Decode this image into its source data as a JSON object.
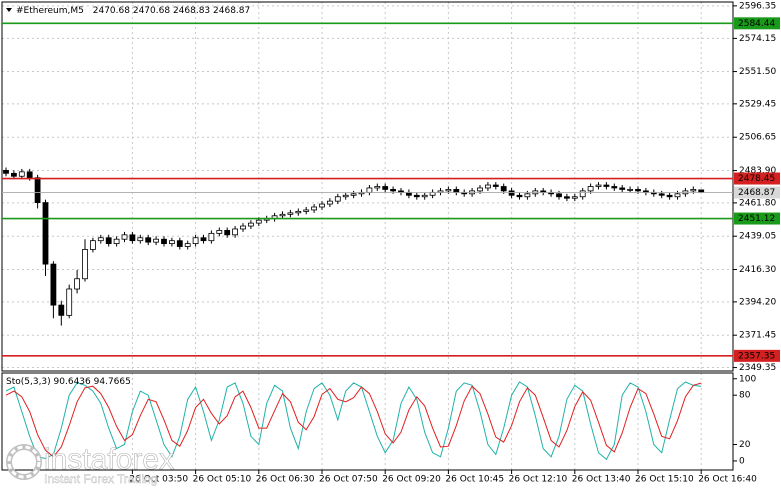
{
  "chart_data": [
    {
      "type": "candlestick",
      "symbol": "#Ethereum,M5",
      "categories": [
        null,
        null,
        null,
        null,
        null,
        null,
        null,
        null,
        null,
        null,
        null,
        null,
        null,
        null,
        null,
        null,
        "26 Oct 03:50",
        null,
        null,
        null,
        null,
        null,
        null,
        null,
        "26 Oct 05:10",
        null,
        null,
        null,
        null,
        null,
        null,
        null,
        "26 Oct 06:30",
        null,
        null,
        null,
        null,
        null,
        null,
        null,
        "26 Oct 07:50",
        null,
        null,
        null,
        null,
        null,
        null,
        null,
        "26 Oct 09:20",
        null,
        null,
        null,
        null,
        null,
        null,
        null,
        "26 Oct 10:45",
        null,
        null,
        null,
        null,
        null,
        null,
        null,
        "26 Oct 12:10",
        null,
        null,
        null,
        null,
        null,
        null,
        null,
        "26 Oct 13:40",
        null,
        null,
        null,
        null,
        null,
        null,
        null,
        "26 Oct 15:10",
        null,
        null,
        null,
        null,
        null,
        null,
        null,
        "26 Oct 16:40"
      ],
      "open": [
        2484,
        2482,
        2480,
        2483,
        2479,
        2462,
        2420,
        2392,
        2385,
        2403,
        2410,
        2430,
        2436,
        2438,
        2434,
        2437,
        2440,
        2436,
        2438,
        2435,
        2437,
        2434,
        2436,
        2432,
        2434,
        2438,
        2436,
        2441,
        2443,
        2440,
        2444,
        2446,
        2448,
        2450,
        2451,
        2453,
        2454,
        2455,
        2456,
        2457,
        2459,
        2461,
        2463,
        2466,
        2467,
        2468,
        2469,
        2472,
        2473,
        2471,
        2470,
        2469,
        2467,
        2466,
        2467,
        2469,
        2470,
        2471,
        2469,
        2468,
        2470,
        2472,
        2474,
        2473,
        2470,
        2467,
        2466,
        2468,
        2470,
        2469,
        2468,
        2466,
        2465,
        2466,
        2470,
        2473,
        2474,
        2473,
        2472,
        2471,
        2471,
        2470,
        2469,
        2468,
        2467,
        2466,
        2468,
        2470,
        2470.68
      ],
      "high": [
        2486,
        2484,
        2485,
        2485,
        2481,
        2464,
        2422,
        2395,
        2406,
        2416,
        2437,
        2438,
        2440,
        2440,
        2439,
        2442,
        2442,
        2440,
        2440,
        2439,
        2439,
        2438,
        2438,
        2436,
        2440,
        2440,
        2443,
        2445,
        2445,
        2446,
        2448,
        2450,
        2452,
        2453,
        2455,
        2456,
        2457,
        2458,
        2459,
        2461,
        2463,
        2465,
        2468,
        2469,
        2470,
        2471,
        2474,
        2475,
        2475,
        2473,
        2472,
        2471,
        2469,
        2469,
        2471,
        2472,
        2473,
        2473,
        2471,
        2472,
        2474,
        2476,
        2476,
        2475,
        2472,
        2469,
        2470,
        2472,
        2472,
        2471,
        2470,
        2468,
        2468,
        2472,
        2475,
        2476,
        2476,
        2475,
        2474,
        2473,
        2473,
        2472,
        2471,
        2470,
        2469,
        2470,
        2472,
        2473,
        2470.68
      ],
      "low": [
        2480,
        2478,
        2478,
        2477,
        2458,
        2412,
        2383,
        2378,
        2383,
        2400,
        2408,
        2428,
        2434,
        2432,
        2432,
        2435,
        2434,
        2434,
        2433,
        2433,
        2432,
        2432,
        2430,
        2430,
        2432,
        2434,
        2434,
        2439,
        2438,
        2438,
        2442,
        2444,
        2446,
        2448,
        2449,
        2451,
        2452,
        2453,
        2454,
        2455,
        2457,
        2459,
        2461,
        2464,
        2465,
        2466,
        2467,
        2470,
        2469,
        2468,
        2467,
        2465,
        2464,
        2464,
        2465,
        2467,
        2468,
        2467,
        2466,
        2466,
        2468,
        2470,
        2471,
        2468,
        2465,
        2464,
        2464,
        2466,
        2467,
        2466,
        2464,
        2463,
        2463,
        2464,
        2468,
        2471,
        2471,
        2470,
        2469,
        2469,
        2468,
        2467,
        2466,
        2465,
        2464,
        2464,
        2466,
        2468,
        2468.83
      ],
      "close": [
        2482,
        2480,
        2483,
        2479,
        2462,
        2420,
        2392,
        2385,
        2403,
        2410,
        2430,
        2436,
        2438,
        2434,
        2437,
        2440,
        2436,
        2438,
        2435,
        2437,
        2434,
        2436,
        2432,
        2434,
        2438,
        2436,
        2441,
        2443,
        2440,
        2444,
        2446,
        2448,
        2450,
        2451,
        2453,
        2454,
        2455,
        2456,
        2457,
        2459,
        2461,
        2463,
        2466,
        2467,
        2468,
        2469,
        2472,
        2473,
        2471,
        2470,
        2469,
        2467,
        2466,
        2467,
        2469,
        2470,
        2471,
        2469,
        2468,
        2470,
        2472,
        2474,
        2473,
        2470,
        2467,
        2466,
        2468,
        2470,
        2469,
        2468,
        2466,
        2465,
        2466,
        2470,
        2473,
        2474,
        2473,
        2472,
        2471,
        2471,
        2470,
        2469,
        2468,
        2467,
        2466,
        2468,
        2470,
        2471,
        2468.87
      ],
      "ylim": [
        2347,
        2599
      ],
      "yticks": [
        2596.35,
        2574.15,
        {
          "value": 2551.5,
          "label": "2551.50"
        },
        2529.45,
        2506.65,
        {
          "value": 2483.9,
          "label": "2483.90"
        },
        {
          "value": 2461.8,
          "label": "2461.80"
        },
        2439.05,
        {
          "value": 2416.3,
          "label": "2416.30"
        },
        {
          "value": 2394.2,
          "label": "2394.20"
        },
        2371.45,
        2349.35
      ],
      "levels": [
        {
          "value": 2584.44,
          "color": "#1a9a1a"
        },
        {
          "value": 2478.45,
          "color": "#d42020"
        },
        {
          "value": 2451.12,
          "color": "#1a9a1a"
        },
        {
          "value": 2357.35,
          "color": "#d42020"
        }
      ],
      "grid": true
    },
    {
      "type": "line",
      "title": "Sto(5,3,3)",
      "series": [
        {
          "color": "#20b2aa",
          "values": [
            85,
            90,
            60,
            30,
            5,
            3,
            8,
            40,
            80,
            95,
            92,
            85,
            70,
            40,
            15,
            20,
            60,
            85,
            80,
            50,
            20,
            5,
            30,
            75,
            90,
            60,
            25,
            50,
            90,
            95,
            70,
            30,
            20,
            70,
            92,
            85,
            40,
            15,
            60,
            88,
            95,
            80,
            50,
            85,
            95,
            90,
            60,
            30,
            10,
            25,
            70,
            90,
            75,
            35,
            10,
            5,
            40,
            85,
            95,
            92,
            60,
            20,
            8,
            40,
            80,
            96,
            90,
            55,
            15,
            5,
            30,
            75,
            92,
            85,
            45,
            10,
            2,
            20,
            80,
            95,
            90,
            60,
            20,
            10,
            50,
            88,
            96,
            92,
            90.6436
          ]
        },
        {
          "color": "#e02020",
          "values": [
            80,
            85,
            78,
            60,
            32,
            13,
            5,
            17,
            43,
            72,
            89,
            91,
            82,
            65,
            42,
            25,
            32,
            55,
            75,
            72,
            50,
            25,
            18,
            37,
            65,
            75,
            58,
            45,
            55,
            78,
            85,
            65,
            40,
            40,
            61,
            82,
            72,
            47,
            38,
            54,
            81,
            88,
            75,
            72,
            77,
            90,
            82,
            60,
            33,
            22,
            35,
            62,
            78,
            67,
            40,
            17,
            18,
            43,
            73,
            91,
            82,
            57,
            29,
            23,
            43,
            72,
            89,
            80,
            53,
            25,
            17,
            37,
            66,
            84,
            74,
            47,
            19,
            11,
            34,
            65,
            88,
            82,
            57,
            30,
            27,
            49,
            78,
            92,
            94.7665
          ]
        }
      ],
      "ylim": [
        -11,
        107
      ],
      "yticks": [
        100,
        80,
        20,
        0
      ]
    }
  ],
  "watermark": {
    "brand": "instaforex",
    "tagline": "Instant Forex Trading"
  }
}
